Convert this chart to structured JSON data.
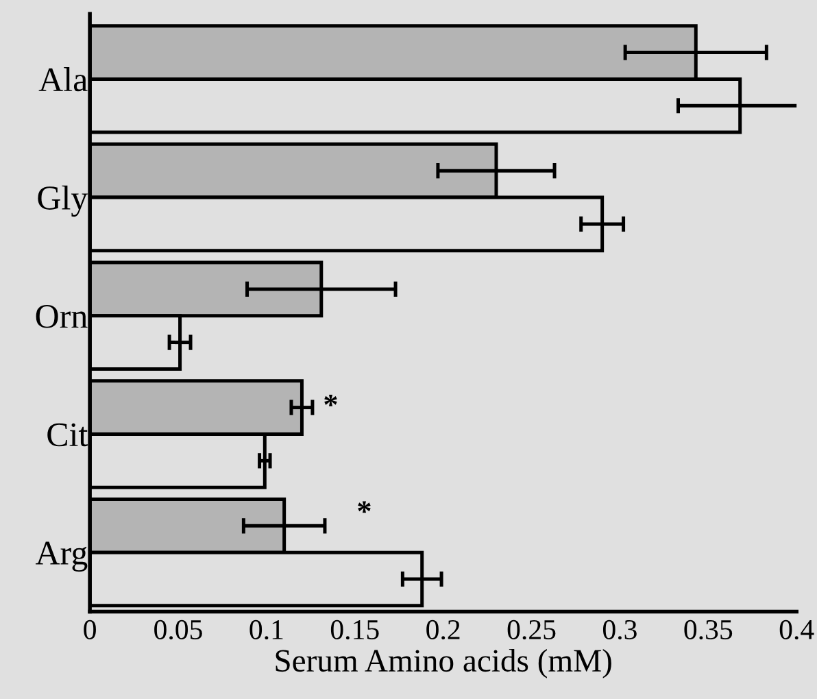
{
  "chart_data": {
    "type": "bar",
    "orientation": "horizontal",
    "xlabel": "Serum Amino acids (mM)",
    "categories": [
      "Ala",
      "Gly",
      "Orn",
      "Cit",
      "Arg"
    ],
    "series": [
      {
        "color": "#b4b4b4",
        "values": [
          0.343,
          0.23,
          0.131,
          0.12,
          0.11
        ],
        "errors": [
          0.04,
          0.033,
          0.042,
          0.006,
          0.023
        ]
      },
      {
        "color": "#e0e0e0",
        "values": [
          0.368,
          0.29,
          0.051,
          0.099,
          0.188
        ],
        "errors": [
          0.035,
          0.012,
          0.006,
          0.003,
          0.011
        ]
      }
    ],
    "xlim": [
      0,
      0.4
    ],
    "xticks": [
      0,
      0.05,
      0.1,
      0.15,
      0.2,
      0.25,
      0.3,
      0.35,
      0.4
    ],
    "annotations": [
      "*",
      "*"
    ],
    "grid": false,
    "legend": false
  }
}
